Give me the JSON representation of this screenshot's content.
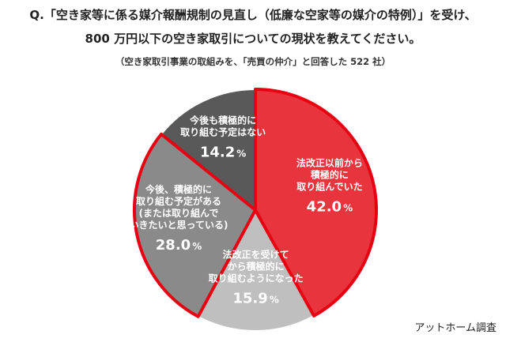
{
  "question": {
    "line1": "Q.「空き家等に係る媒介報酬規制の見直し（低廉な空家等の媒介の特例）」を受け、",
    "line2": "800 万円以下の空き家取引についての現状を教えてください。"
  },
  "subtitle": "（空き家取引事業の取組みを、「売買の仲介」と回答した 522 社）",
  "credit": "アットホーム調査",
  "chart_data": {
    "type": "pie",
    "unit": "%",
    "slices": [
      {
        "label": [
          "法改正以前から",
          "積極的に",
          "取り組んでいた"
        ],
        "value": 42.0,
        "value_text": "42.0",
        "color": "#e8343d",
        "text_color": "#ffffff",
        "highlight": true
      },
      {
        "label": [
          "法改正を受けて",
          "から積極的に",
          "取り組むようになった"
        ],
        "value": 15.9,
        "value_text": "15.9",
        "color": "#bfbfbf",
        "text_color": "#ffffff",
        "highlight": false
      },
      {
        "label": [
          "今後、積極的に",
          "取り組む予定がある",
          "(または取り組んで",
          "いきたいと思っている)"
        ],
        "value": 28.0,
        "value_text": "28.0",
        "color": "#8a8a8a",
        "text_color": "#ffffff",
        "highlight": true
      },
      {
        "label": [
          "今後も積極的に",
          "取り組む予定はない"
        ],
        "value": 14.2,
        "value_text": "14.2",
        "color": "#595959",
        "text_color": "#ffffff",
        "highlight": false
      }
    ],
    "highlight_stroke": "#e60012"
  }
}
